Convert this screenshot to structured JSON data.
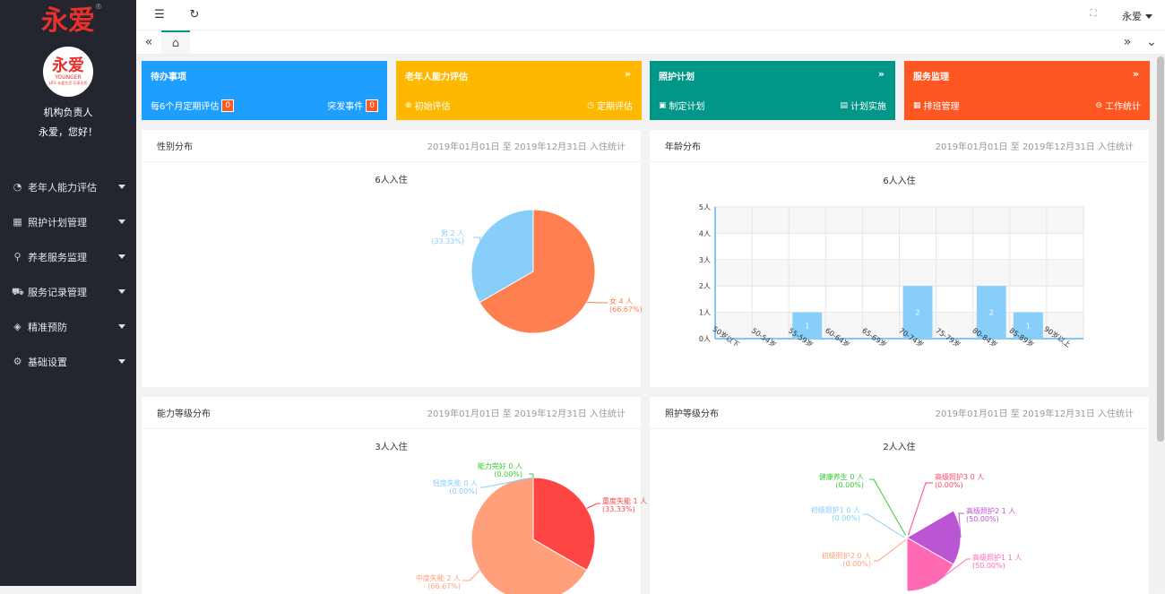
{
  "sidebar": {
    "brand": "永爱",
    "brand_mark": "®",
    "avatar": {
      "text": "永爱",
      "line1": "YOUNGER",
      "line2": "LIFE 永爱生活 乐享无忧"
    },
    "role": "机构负责人",
    "greeting": "永爱，您好！",
    "items": [
      {
        "label": "老年人能力评估",
        "icon": "gauge-icon"
      },
      {
        "label": "照护计划管理",
        "icon": "grid-icon"
      },
      {
        "label": "养老服务监理",
        "icon": "search-icon"
      },
      {
        "label": "服务记录管理",
        "icon": "truck-icon"
      },
      {
        "label": "精准预防",
        "icon": "shield-icon"
      },
      {
        "label": "基础设置",
        "icon": "gear-icon"
      }
    ]
  },
  "header": {
    "user": "永爱",
    "menu_icon": "☰",
    "refresh_icon": "↻",
    "fullscreen_icon": "⛶"
  },
  "tabbar": {
    "home_icon": "⌂"
  },
  "cards": [
    {
      "title": "待办事项",
      "color": "#1e9fff",
      "left_label": "每6个月定期评估",
      "left_badge": "0",
      "right_label": "突发事件",
      "right_badge": "0"
    },
    {
      "title": "老年人能力评估",
      "color": "#ffb800",
      "left_label": "初始评估",
      "right_label": "定期评估"
    },
    {
      "title": "照护计划",
      "color": "#009688",
      "left_label": "制定计划",
      "right_label": "计划实施"
    },
    {
      "title": "服务监理",
      "color": "#ff5722",
      "left_label": "排班管理",
      "right_label": "工作统计"
    }
  ],
  "panels": {
    "range": "2019年01月01日 至 2019年12月31日 入住统计",
    "gender": {
      "title": "性别分布",
      "subtitle": "6人入住",
      "chart_data": {
        "type": "pie",
        "slices": [
          {
            "label": "女",
            "count": 4,
            "value_text": "4 人",
            "pct": "(66.67%)",
            "color": "#ff7f50"
          },
          {
            "label": "男",
            "count": 2,
            "value_text": "2 人",
            "pct": "(33.33%)",
            "color": "#87cefa"
          }
        ]
      }
    },
    "age": {
      "title": "年龄分布",
      "subtitle": "6人入住",
      "chart_data": {
        "type": "bar",
        "categories": [
          "50岁以下",
          "50-54岁",
          "55-59岁",
          "60-64岁",
          "65-69岁",
          "70-74岁",
          "75-79岁",
          "80-84岁",
          "85-89岁",
          "90岁以上"
        ],
        "values": [
          0,
          0,
          1,
          0,
          0,
          2,
          0,
          2,
          1,
          0
        ],
        "yticks": [
          "0人",
          "1人",
          "2人",
          "3人",
          "4人",
          "5人"
        ],
        "ylim": [
          0,
          5
        ],
        "color": "#87cefa"
      }
    },
    "ability": {
      "title": "能力等级分布",
      "subtitle": "3人入住",
      "chart_data": {
        "type": "pie",
        "slices": [
          {
            "label": "重度失能",
            "count": 1,
            "value_text": "1 人",
            "pct": "(33.33%)",
            "color": "#ff4444"
          },
          {
            "label": "中度失能",
            "count": 2,
            "value_text": "2 人",
            "pct": "(66.67%)",
            "color": "#ffa07a"
          },
          {
            "label": "轻度失能",
            "count": 0,
            "value_text": "0 人",
            "pct": "(0.00%)",
            "color": "#87cefa"
          },
          {
            "label": "能力完好",
            "count": 0,
            "value_text": "0 人",
            "pct": "(0.00%)",
            "color": "#32cd32"
          }
        ]
      }
    },
    "care": {
      "title": "照护等级分布",
      "subtitle": "2人入住",
      "chart_data": {
        "type": "pie",
        "slices": [
          {
            "label": "高级照护3",
            "count": 0,
            "value_text": "0 人",
            "pct": "(0.00%)",
            "color": "#ff4466"
          },
          {
            "label": "高级照护2",
            "count": 1,
            "value_text": "1 人",
            "pct": "(50.00%)",
            "color": "#ba55d3"
          },
          {
            "label": "高级照护1",
            "count": 1,
            "value_text": "1 人",
            "pct": "(50.00%)",
            "color": "#ff69b4"
          },
          {
            "label": "初级照护2",
            "count": 0,
            "value_text": "0 人",
            "pct": "(0.00%)",
            "color": "#ffa07a"
          },
          {
            "label": "初级照护1",
            "count": 0,
            "value_text": "0 人",
            "pct": "(0.00%)",
            "color": "#87cefa"
          },
          {
            "label": "健康养生",
            "count": 0,
            "value_text": "0 人",
            "pct": "(0.00%)",
            "color": "#32cd32"
          }
        ]
      }
    }
  }
}
